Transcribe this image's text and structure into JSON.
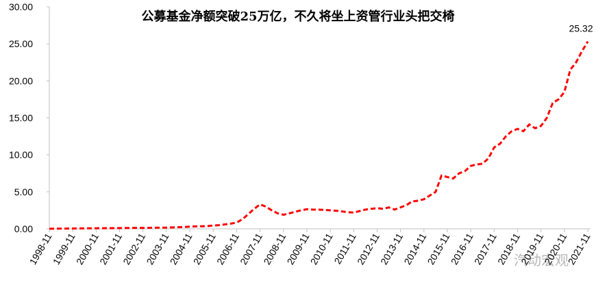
{
  "chart_data": {
    "type": "line",
    "title": "公募基金净额突破25万亿，不久将坐上资管行业头把交椅",
    "categories": [
      "1998-11",
      null,
      null,
      null,
      "1999-11",
      null,
      null,
      null,
      "2000-11",
      null,
      null,
      null,
      "2001-11",
      null,
      null,
      null,
      "2002-11",
      null,
      null,
      null,
      "2003-11",
      null,
      null,
      null,
      "2004-11",
      null,
      null,
      null,
      "2005-11",
      null,
      null,
      null,
      "2006-11",
      null,
      null,
      null,
      "2007-11",
      null,
      null,
      null,
      "2008-11",
      null,
      null,
      null,
      "2009-11",
      null,
      null,
      null,
      "2010-11",
      null,
      null,
      null,
      "2011-11",
      null,
      null,
      null,
      "2012-11",
      null,
      null,
      null,
      "2013-11",
      null,
      null,
      null,
      "2014-11",
      null,
      null,
      null,
      "2015-11",
      null,
      null,
      null,
      "2016-11",
      null,
      null,
      null,
      "2017-11",
      null,
      null,
      null,
      "2018-11",
      null,
      null,
      null,
      "2019-11",
      null,
      null,
      null,
      "2020-11",
      null,
      null,
      null,
      "2021-11"
    ],
    "series": [
      {
        "color": "#ff0000",
        "values": [
          0.01,
          0.02,
          0.03,
          0.04,
          0.05,
          0.06,
          0.06,
          0.07,
          0.08,
          0.08,
          0.09,
          0.09,
          0.1,
          0.11,
          0.12,
          0.13,
          0.13,
          0.14,
          0.15,
          0.16,
          0.17,
          0.2,
          0.22,
          0.25,
          0.3,
          0.33,
          0.35,
          0.37,
          0.45,
          0.5,
          0.6,
          0.7,
          0.85,
          1.3,
          2.0,
          2.7,
          3.3,
          3.0,
          2.5,
          2.1,
          1.9,
          2.1,
          2.3,
          2.5,
          2.65,
          2.6,
          2.6,
          2.55,
          2.5,
          2.45,
          2.35,
          2.25,
          2.2,
          2.4,
          2.6,
          2.7,
          2.8,
          2.7,
          2.9,
          2.6,
          2.9,
          3.2,
          3.7,
          3.8,
          4.0,
          4.5,
          5.0,
          7.2,
          7.0,
          6.8,
          7.5,
          7.8,
          8.5,
          8.7,
          8.8,
          9.5,
          11.0,
          11.5,
          12.5,
          13.2,
          13.5,
          13.2,
          14.1,
          13.6,
          13.9,
          15.0,
          17.0,
          17.5,
          18.5,
          21.5,
          22.5,
          24.0,
          25.32
        ]
      }
    ],
    "ylim": [
      0,
      30
    ],
    "yticks": [
      {
        "value": 0,
        "label": "0.00"
      },
      {
        "value": 5,
        "label": "5.00"
      },
      {
        "value": 10,
        "label": "10.00"
      },
      {
        "value": 15,
        "label": "15.00"
      },
      {
        "value": 20,
        "label": "20.00"
      },
      {
        "value": 25,
        "label": "25.00"
      },
      {
        "value": 30,
        "label": "30.00"
      }
    ],
    "watermark": "汽动宏观"
  }
}
